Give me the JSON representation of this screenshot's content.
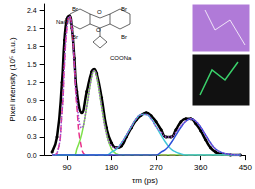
{
  "chart_data": {
    "type": "line",
    "xlabel": "τm (ps)",
    "ylabel": "Pixel intensity (10⁵ a.u.)",
    "x": [
      60,
      70,
      80,
      85,
      90,
      95,
      100,
      105,
      110,
      120,
      130,
      140,
      145,
      150,
      160,
      170,
      180,
      190,
      200,
      210,
      220,
      230,
      240,
      250,
      260,
      270,
      280,
      290,
      300,
      310,
      320,
      330,
      340,
      350,
      360,
      370,
      380,
      390,
      400,
      420,
      440
    ],
    "series": [
      {
        "color": "#000000",
        "marker": "circle",
        "line_style": "solid",
        "values": [
          0.05,
          0.3,
          1.2,
          1.9,
          2.25,
          2.3,
          2.1,
          1.6,
          1.05,
          0.7,
          1.05,
          1.38,
          1.42,
          1.35,
          0.95,
          0.45,
          0.2,
          0.12,
          0.15,
          0.3,
          0.45,
          0.58,
          0.66,
          0.7,
          0.65,
          0.55,
          0.42,
          0.3,
          0.3,
          0.42,
          0.55,
          0.6,
          0.6,
          0.52,
          0.4,
          0.25,
          0.12,
          0.05,
          0.02,
          0,
          0
        ]
      },
      {
        "color": "#e8308a",
        "line_style": "dashed",
        "values": [
          0,
          0.03,
          0.7,
          1.5,
          2.1,
          2.3,
          2.1,
          1.5,
          0.8,
          0.1,
          0,
          0,
          0,
          0,
          0,
          0,
          0,
          0,
          0,
          0,
          0,
          0,
          0,
          0,
          0,
          0,
          0,
          0,
          0,
          0,
          0,
          0,
          0,
          0,
          0,
          0,
          0,
          0,
          0,
          0,
          0
        ]
      },
      {
        "color": "#7ee04a",
        "line_style": "solid",
        "values": [
          0,
          0,
          0,
          0,
          0,
          0,
          0,
          0,
          0.1,
          0.35,
          0.8,
          1.3,
          1.4,
          1.3,
          0.8,
          0.35,
          0.1,
          0.02,
          0,
          0,
          0,
          0,
          0,
          0,
          0,
          0,
          0,
          0,
          0,
          0,
          0,
          0,
          0,
          0,
          0,
          0,
          0,
          0,
          0,
          0,
          0
        ]
      },
      {
        "color": "#3fc6d8",
        "line_style": "solid",
        "values": [
          0,
          0,
          0,
          0,
          0,
          0,
          0,
          0,
          0,
          0,
          0,
          0,
          0,
          0,
          0,
          0,
          0.05,
          0.1,
          0.2,
          0.33,
          0.47,
          0.6,
          0.67,
          0.67,
          0.6,
          0.47,
          0.33,
          0.2,
          0.1,
          0.05,
          0.02,
          0,
          0,
          0,
          0,
          0,
          0,
          0,
          0,
          0,
          0
        ]
      },
      {
        "color": "#2b4fd8",
        "line_style": "solid",
        "values": [
          0,
          0,
          0,
          0,
          0,
          0,
          0,
          0,
          0,
          0,
          0,
          0,
          0,
          0,
          0,
          0,
          0,
          0,
          0,
          0,
          0,
          0,
          0,
          0,
          0,
          0,
          0.05,
          0.1,
          0.2,
          0.33,
          0.46,
          0.56,
          0.6,
          0.56,
          0.46,
          0.33,
          0.2,
          0.1,
          0.05,
          0.01,
          0
        ]
      },
      {
        "color": "#9b4fd0",
        "line_style": "dotted",
        "values": [
          0,
          0.03,
          0.7,
          1.5,
          2.1,
          2.3,
          2.1,
          1.5,
          0.9,
          0.45,
          0.8,
          1.3,
          1.4,
          1.3,
          0.8,
          0.35,
          0.15,
          0.12,
          0.2,
          0.33,
          0.47,
          0.6,
          0.67,
          0.67,
          0.6,
          0.47,
          0.38,
          0.3,
          0.3,
          0.38,
          0.48,
          0.56,
          0.6,
          0.56,
          0.46,
          0.33,
          0.2,
          0.1,
          0.05,
          0.01,
          0
        ]
      }
    ],
    "xlim": [
      45,
      450
    ],
    "xticks": [
      90,
      180,
      270,
      360,
      450
    ],
    "ylim": [
      0,
      2.5
    ],
    "yticks": [
      {
        "value": 0,
        "label": "0.0"
      },
      {
        "value": 0.3,
        "label": "0.3"
      },
      {
        "value": 0.6,
        "label": "0.6"
      },
      {
        "value": 0.9,
        "label": "0.9"
      },
      {
        "value": 1.2,
        "label": "1.2"
      },
      {
        "value": 1.5,
        "label": "1.5"
      },
      {
        "value": 1.8,
        "label": "1.8"
      },
      {
        "value": 2.1,
        "label": "2.1"
      },
      {
        "value": 2.4,
        "label": "2.4"
      }
    ],
    "annotations": [
      "NaO",
      "Br",
      "Br",
      "O",
      "O",
      "Br",
      "Br",
      "COONa"
    ],
    "grid": false
  }
}
